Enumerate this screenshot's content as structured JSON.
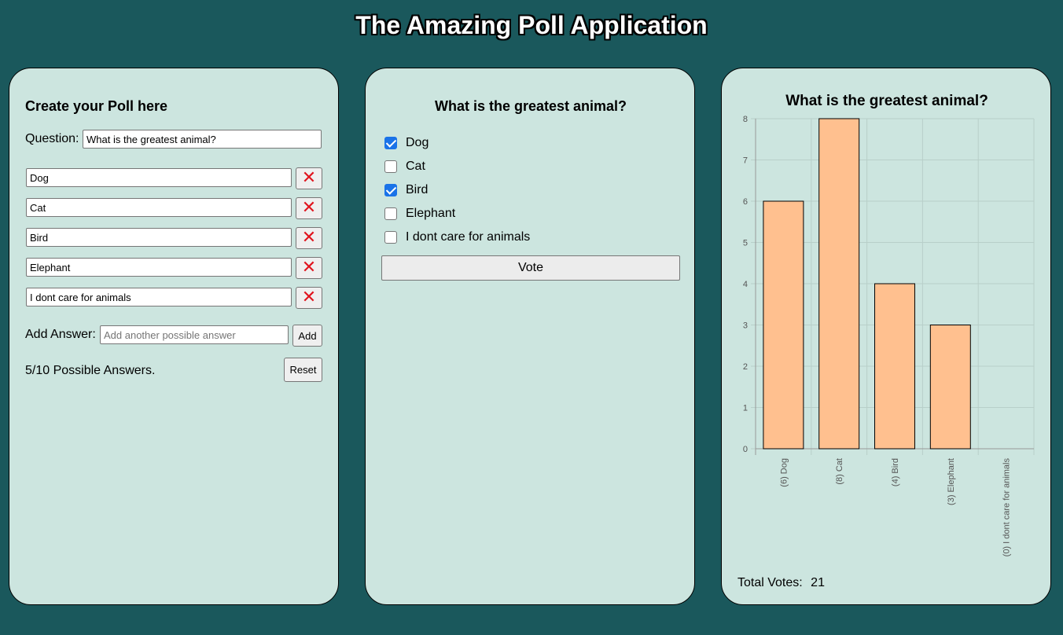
{
  "app": {
    "title": "The Amazing Poll Application"
  },
  "create": {
    "heading": "Create your Poll here",
    "question_label": "Question:",
    "question_value": "What is the greatest animal?",
    "answers": [
      "Dog",
      "Cat",
      "Bird",
      "Elephant",
      "I dont care for animals"
    ],
    "remove_glyph": "✕",
    "add_label": "Add Answer:",
    "add_placeholder": "Add another possible answer",
    "add_button": "Add",
    "count_text": "5/10 Possible Answers.",
    "reset_button": "Reset"
  },
  "vote": {
    "heading": "What is the greatest animal?",
    "options": [
      {
        "label": "Dog",
        "checked": true
      },
      {
        "label": "Cat",
        "checked": false
      },
      {
        "label": "Bird",
        "checked": true
      },
      {
        "label": "Elephant",
        "checked": false
      },
      {
        "label": "I dont care for animals",
        "checked": false
      }
    ],
    "vote_button": "Vote"
  },
  "results": {
    "heading": "What is the greatest animal?",
    "total_label": "Total Votes:",
    "total_value": "21"
  },
  "colors": {
    "background": "#1a585c",
    "panel": "#cce5df",
    "bar_fill": "#ffc08f",
    "checkbox_accent": "#1a73e8",
    "remove_red": "#e0141e"
  },
  "chart_data": {
    "type": "bar",
    "title": "What is the greatest animal?",
    "categories": [
      "(6) Dog",
      "(8) Cat",
      "(4) Bird",
      "(3) Elephant",
      "(0) I dont care for animals"
    ],
    "values": [
      6,
      8,
      4,
      3,
      0
    ],
    "ylim": [
      0,
      8
    ],
    "yticks": [
      0,
      1,
      2,
      3,
      4,
      5,
      6,
      7,
      8
    ],
    "grid": true,
    "legend": "none"
  }
}
